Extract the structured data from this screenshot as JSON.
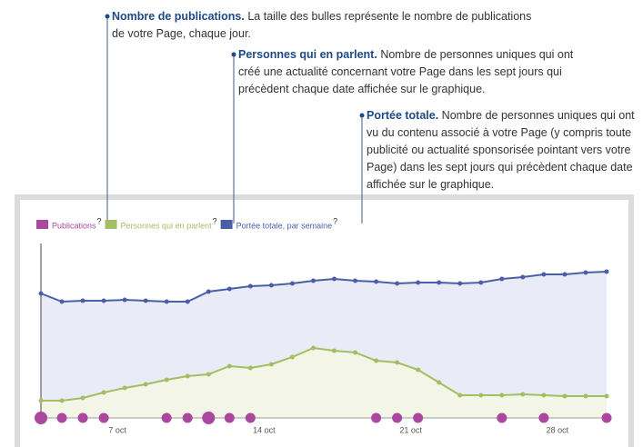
{
  "chart_data": {
    "type": "line",
    "annotations": [
      {
        "title": "Nombre de publications.",
        "lines": [
          "La taille des bulles représente le nombre de publications",
          "de votre Page, chaque jour."
        ]
      },
      {
        "title": "Personnes qui en parlent.",
        "lines": [
          "Nombre de personnes uniques qui ont",
          "créé une actualité concernant votre Page dans les sept jours qui",
          "précèdent chaque date affichée sur le graphique."
        ]
      },
      {
        "title": "Portée totale.",
        "lines": [
          "Nombre de personnes uniques qui ont",
          "vu du contenu associé à votre Page (y compris toute",
          "publicité ou actualité sponsorisée pointant vers votre",
          "Page) dans les sept jours qui précèdent chaque date",
          "affichée sur le graphique."
        ]
      }
    ],
    "legend_help": "?",
    "categories": [
      null,
      null,
      null,
      null,
      "7 oct",
      null,
      null,
      null,
      null,
      null,
      null,
      "14 oct",
      null,
      null,
      null,
      null,
      null,
      null,
      "21 oct",
      null,
      null,
      null,
      null,
      null,
      null,
      "28 oct",
      null,
      null
    ],
    "ylim": [
      0,
      100
    ],
    "series": [
      {
        "name": "Publications",
        "color": "#a9489e",
        "kind": "bubble",
        "values": [
          2,
          1,
          1,
          1,
          0,
          0,
          1,
          1,
          2,
          1,
          1,
          0,
          0,
          0,
          0,
          0,
          1,
          1,
          1,
          0,
          0,
          0,
          1,
          0,
          1,
          0,
          0,
          1
        ]
      },
      {
        "name": "Personnes qui en parlent",
        "color": "#a5bd63",
        "area": "#f3f5e6",
        "values": [
          9.5,
          9.5,
          11,
          14,
          16.5,
          18.5,
          21,
          23,
          24,
          28.5,
          27.5,
          29.5,
          33.5,
          38.5,
          37,
          36,
          31.5,
          30.5,
          26.5,
          19.5,
          12.5,
          12.5,
          12.5,
          13,
          12.5,
          12,
          12,
          12
        ]
      },
      {
        "name": "Portée totale, par semaine",
        "color": "#4a5fa8",
        "area": "#e9ecf6",
        "values": [
          68.5,
          64,
          64.5,
          64.5,
          65,
          64.5,
          64,
          64,
          69.5,
          71,
          72.5,
          73,
          74,
          75.5,
          76.5,
          75.5,
          75,
          74,
          74.5,
          74.5,
          74,
          74.5,
          76.5,
          77.5,
          79,
          79,
          80,
          80.5
        ]
      }
    ]
  }
}
